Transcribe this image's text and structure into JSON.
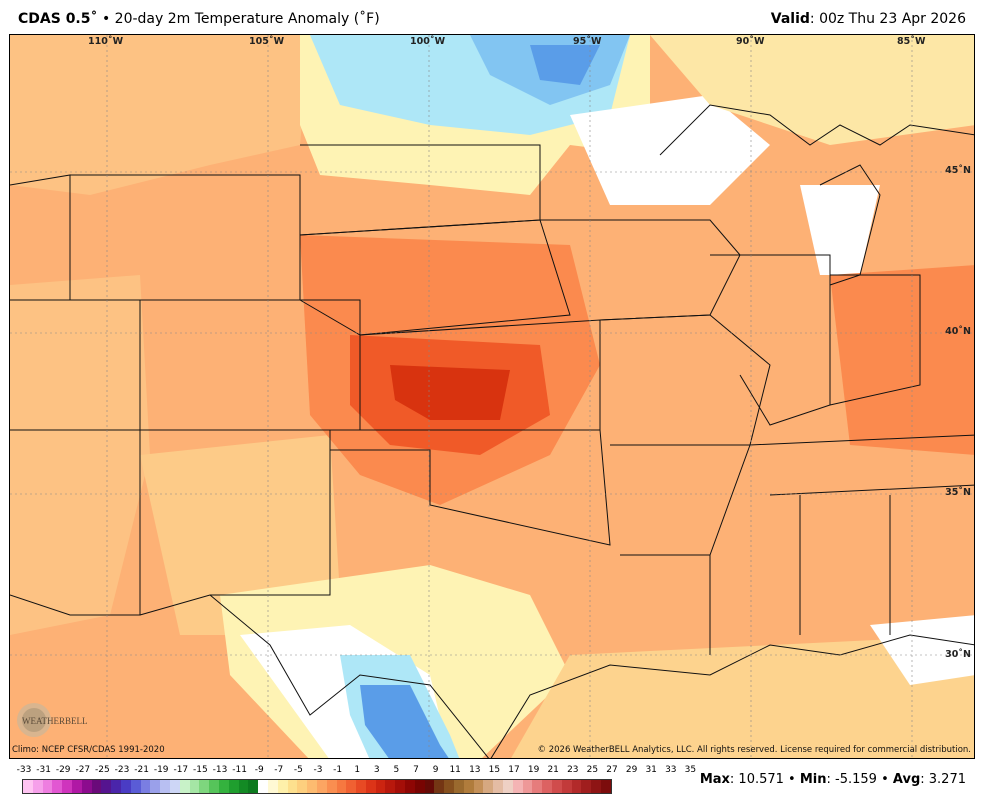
{
  "header": {
    "model": "CDAS 0.5˚",
    "bullet": "•",
    "product": "20-day 2m Temperature Anomaly (˚F)",
    "valid_label": "Valid",
    "valid_value": ": 00z Thu 23 Apr 2026"
  },
  "map": {
    "lon_labels": [
      "110˚W",
      "105˚W",
      "100˚W",
      "95˚W",
      "90˚W",
      "85˚W"
    ],
    "lat_labels": [
      "45˚N",
      "40˚N",
      "35˚N",
      "30˚N"
    ],
    "colors": {
      "warm_light": "#fdd38e",
      "warm_mid": "#fdb175",
      "warm_strong": "#fb8a4e",
      "hot": "#f05a28",
      "hottest": "#d8330f",
      "neutral": "#ffffff",
      "pale_yellow": "#fef3b4",
      "cool_light": "#aee7f7",
      "cool_mid": "#82c5f2",
      "cool_strong": "#5a9de8",
      "border": "#111111"
    },
    "logo_text": "WEATHERBELL"
  },
  "footer": {
    "climo": "Climo: NCEP CFSR/CDAS 1991-2020",
    "copyright": "© 2026 WeatherBELL Analytics, LLC. All rights reserved. License required for commercial distribution."
  },
  "colorbar": {
    "labels": [
      "-33",
      "-31",
      "-29",
      "-27",
      "-25",
      "-23",
      "-21",
      "-19",
      "-17",
      "-15",
      "-13",
      "-11",
      "-9",
      "-7",
      "-5",
      "-3",
      "-1",
      "1",
      "3",
      "5",
      "7",
      "9",
      "11",
      "13",
      "15",
      "17",
      "19",
      "21",
      "23",
      "25",
      "27",
      "29",
      "31",
      "33",
      "35"
    ],
    "colors": [
      "#ffc4f2",
      "#f6a0ea",
      "#ee7ee0",
      "#e257d2",
      "#cf34bd",
      "#b018a5",
      "#8c0b8e",
      "#6a0a7a",
      "#55148f",
      "#4a25aa",
      "#4a3cc4",
      "#5a5cd6",
      "#7a7ee2",
      "#9aa0ea",
      "#b8bff2",
      "#cdd6f6",
      "#c8f2c8",
      "#a5e6a5",
      "#7ed67e",
      "#56c45a",
      "#34b23e",
      "#1f9e2e",
      "#138a24",
      "#0c7a1e",
      "#ffffff",
      "#fff9d4",
      "#fef0aa",
      "#fde08e",
      "#fdcf7e",
      "#fdbb70",
      "#fca562",
      "#fa8e50",
      "#f67840",
      "#f06132",
      "#e84a24",
      "#dc3418",
      "#cc2410",
      "#b8180c",
      "#a40e08",
      "#8e0604",
      "#780402",
      "#650a06",
      "#743614",
      "#86501e",
      "#9a6a2e",
      "#b07c3c",
      "#c49058",
      "#d6a880",
      "#e4bca4",
      "#eed0c4",
      "#f4b4b4",
      "#ee9898",
      "#e67c7c",
      "#dc6262",
      "#d04c4c",
      "#c23a3a",
      "#b22a2a",
      "#a01e1e",
      "#8e1414",
      "#7c0c0c"
    ]
  },
  "stats": {
    "max_label": "Max",
    "max_value": ": 10.571",
    "min_label": "Min",
    "min_value": ": -5.159",
    "avg_label": "Avg",
    "avg_value": ": 3.271",
    "sep": " • "
  }
}
